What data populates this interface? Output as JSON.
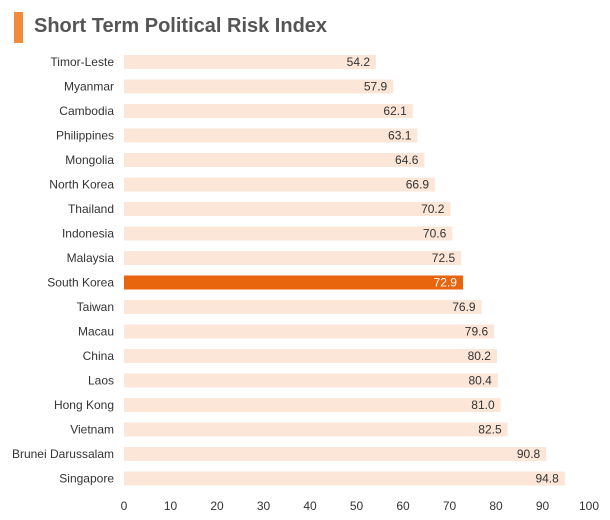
{
  "header": {
    "title": "Short Term Political Risk Index"
  },
  "colors": {
    "accent": "#F08A3C",
    "bar": "#FCE6D8",
    "highlight_bar": "#E8650E"
  },
  "chart_data": {
    "type": "bar",
    "orientation": "horizontal",
    "title": "Short Term Political Risk Index",
    "xlabel": "",
    "ylabel": "",
    "xlim": [
      0,
      100
    ],
    "x_ticks": [
      0,
      10,
      20,
      30,
      40,
      50,
      60,
      70,
      80,
      90,
      100
    ],
    "grid": false,
    "highlight": "South Korea",
    "categories": [
      "Timor-Leste",
      "Myanmar",
      "Cambodia",
      "Philippines",
      "Mongolia",
      "North Korea",
      "Thailand",
      "Indonesia",
      "Malaysia",
      "South Korea",
      "Taiwan",
      "Macau",
      "China",
      "Laos",
      "Hong Kong",
      "Vietnam",
      "Brunei Darussalam",
      "Singapore"
    ],
    "values": [
      54.2,
      57.9,
      62.1,
      63.1,
      64.6,
      66.9,
      70.2,
      70.6,
      72.5,
      72.9,
      76.9,
      79.6,
      80.2,
      80.4,
      81.0,
      82.5,
      90.8,
      94.8
    ],
    "value_labels": [
      "54.2",
      "57.9",
      "62.1",
      "63.1",
      "64.6",
      "66.9",
      "70.2",
      "70.6",
      "72.5",
      "72.9",
      "76.9",
      "79.6",
      "80.2",
      "80.4",
      "81.0",
      "82.5",
      "90.8",
      "94.8"
    ]
  }
}
